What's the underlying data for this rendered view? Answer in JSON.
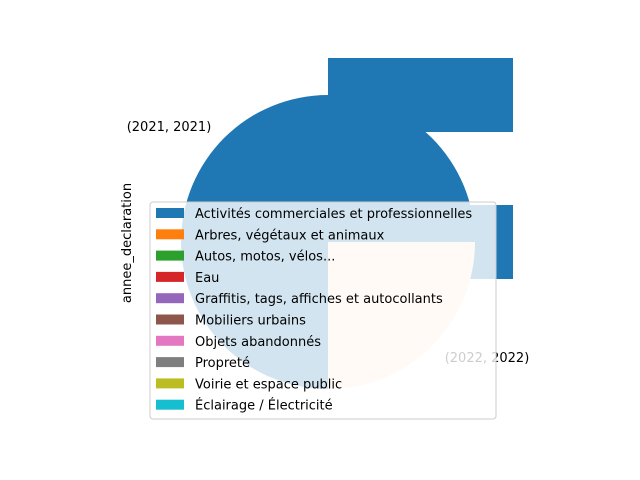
{
  "chart_data": {
    "type": "pie",
    "ylabel": "annee_declaration",
    "slices": [
      {
        "label": "(2021, 2021)",
        "value": 75,
        "color": "#1f77b4"
      },
      {
        "label": "(2022, 2022)",
        "value": 25,
        "color": "#ffe4cc"
      }
    ],
    "legend": {
      "placement": "center",
      "entries": [
        {
          "label": "Activités commerciales et professionnelles",
          "color": "#1f77b4"
        },
        {
          "label": "Arbres, végétaux et animaux",
          "color": "#ff7f0e"
        },
        {
          "label": "Autos, motos, vélos...",
          "color": "#2ca02c"
        },
        {
          "label": "Eau",
          "color": "#d62728"
        },
        {
          "label": "Graffitis, tags, affiches et autocollants",
          "color": "#9467bd"
        },
        {
          "label": "Mobiliers urbains",
          "color": "#8c564b"
        },
        {
          "label": "Objets abandonnés",
          "color": "#e377c2"
        },
        {
          "label": "Propreté",
          "color": "#7f7f7f"
        },
        {
          "label": "Voirie et espace public",
          "color": "#bcbd22"
        },
        {
          "label": "Éclairage / Électricité",
          "color": "#17becf"
        }
      ]
    },
    "overlay_bars": [
      {
        "value": 1,
        "color": "#1f77b4"
      },
      {
        "value": 1,
        "color": "#1f77b4"
      }
    ]
  }
}
